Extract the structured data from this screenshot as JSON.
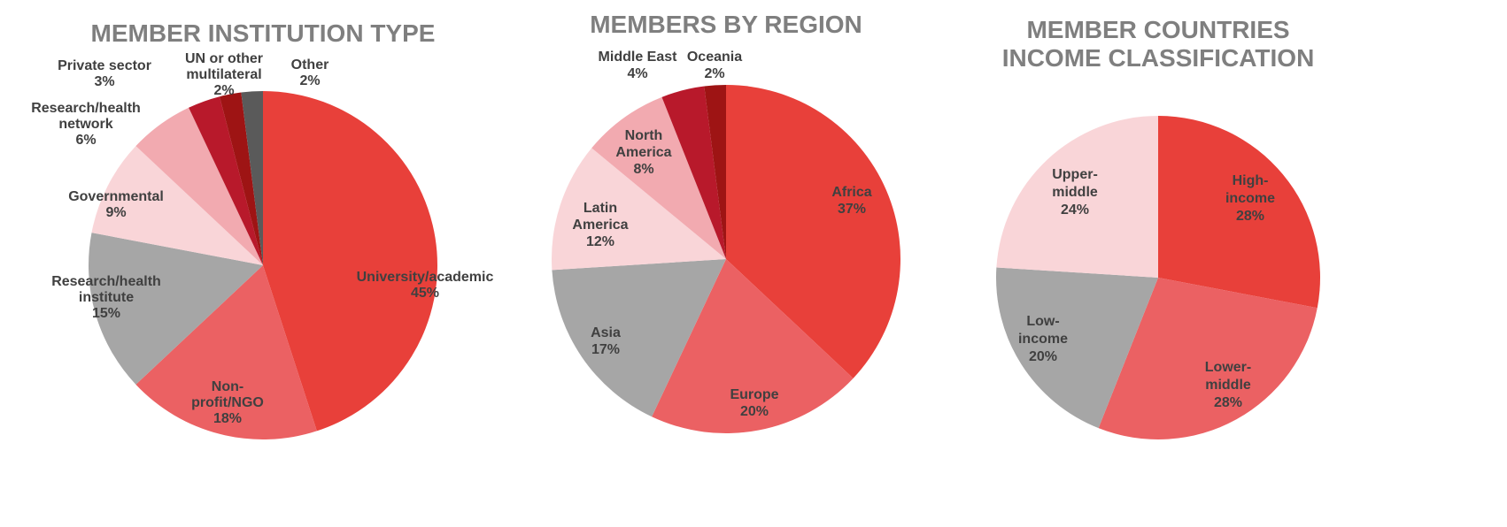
{
  "chart_data": [
    {
      "type": "pie",
      "title": "MEMBER INSTITUTION TYPE",
      "categories": [
        "University/academic",
        "Non-\nprofit/NGO",
        "Research/health\ninstitute",
        "Governmental",
        "Research/health\nnetwork",
        "Private sector",
        "UN or other\nmultilateral",
        "Other"
      ],
      "values": [
        45,
        18,
        15,
        9,
        6,
        3,
        2,
        2
      ],
      "value_labels": [
        "45%",
        "18%",
        "15%",
        "9%",
        "6%",
        "3%",
        "2%",
        "2%"
      ],
      "colors": [
        "#e8403a",
        "#eb6163",
        "#a6a6a6",
        "#f9d5d8",
        "#f2aab0",
        "#b8192b",
        "#9e1414",
        "#5a5a5a"
      ]
    },
    {
      "type": "pie",
      "title": "MEMBERS BY REGION",
      "categories": [
        "Africa",
        "Europe",
        "Asia",
        "Latin\nAmerica",
        "North\nAmerica",
        "Middle East",
        "Oceania"
      ],
      "values": [
        37,
        20,
        17,
        12,
        8,
        4,
        2
      ],
      "value_labels": [
        "37%",
        "20%",
        "17%",
        "12%",
        "8%",
        "4%",
        "2%"
      ],
      "colors": [
        "#e8403a",
        "#eb6163",
        "#a6a6a6",
        "#f9d5d8",
        "#f2aab0",
        "#b8192b",
        "#9e1414"
      ]
    },
    {
      "type": "pie",
      "title": "MEMBER COUNTRIES\nINCOME CLASSIFICATION",
      "categories": [
        "High-\nincome",
        "Lower-\nmiddle",
        "Low-\nincome",
        "Upper-\nmiddle"
      ],
      "values": [
        28,
        28,
        20,
        24
      ],
      "value_labels": [
        "28%",
        "28%",
        "20%",
        "24%"
      ],
      "colors": [
        "#e8403a",
        "#eb6163",
        "#a6a6a6",
        "#f9d5d8"
      ]
    }
  ]
}
